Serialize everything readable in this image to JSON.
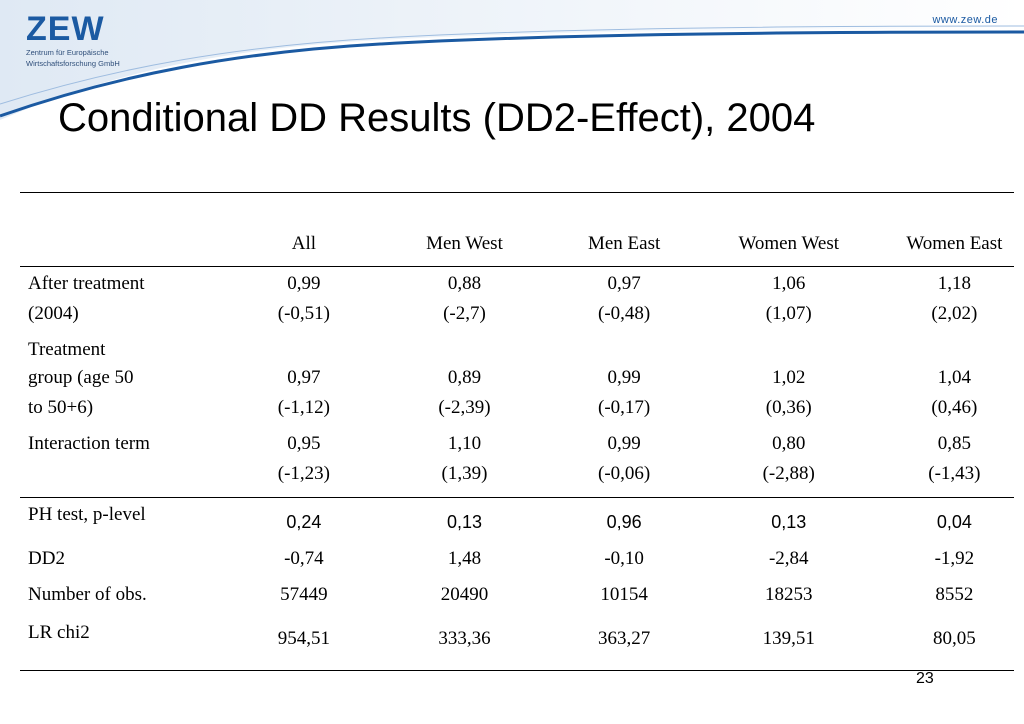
{
  "header": {
    "logo_text": "ZEW",
    "logo_subtitle_1": "Zentrum für Europäische",
    "logo_subtitle_2": "Wirtschaftsforschung GmbH",
    "website": "www.zew.de"
  },
  "slide": {
    "title": "Conditional DD Results (DD2-Effect), 2004",
    "page_number": "23"
  },
  "table": {
    "columns": [
      "All",
      "Men West",
      "Men East",
      "Women West",
      "Women East"
    ],
    "after_treatment": {
      "label_1": "After treatment",
      "label_2": "(2004)",
      "values": [
        "0,99",
        "0,88",
        "0,97",
        "1,06",
        "1,18"
      ],
      "tstats": [
        "(-0,51)",
        "(-2,7)",
        "(-0,48)",
        "(1,07)",
        "(2,02)"
      ]
    },
    "treatment_group": {
      "label_1": "Treatment",
      "label_2": "group (age 50",
      "label_3": "to 50+6)",
      "values": [
        "0,97",
        "0,89",
        "0,99",
        "1,02",
        "1,04"
      ],
      "tstats": [
        "(-1,12)",
        "(-2,39)",
        "(-0,17)",
        "(0,36)",
        "(0,46)"
      ]
    },
    "interaction": {
      "label": "Interaction term",
      "values": [
        "0,95",
        "1,10",
        "0,99",
        "0,80",
        "0,85"
      ],
      "tstats": [
        "(-1,23)",
        "(1,39)",
        "(-0,06)",
        "(-2,88)",
        "(-1,43)"
      ]
    },
    "ph_test": {
      "label": "PH test, p-level",
      "values": [
        "0,24",
        "0,13",
        "0,96",
        "0,13",
        "0,04"
      ]
    },
    "dd2": {
      "label": "DD2",
      "values": [
        "-0,74",
        "1,48",
        "-0,10",
        "-2,84",
        "-1,92"
      ]
    },
    "nobs": {
      "label": "Number of obs.",
      "values": [
        "57449",
        "20490",
        "10154",
        "18253",
        "8552"
      ]
    },
    "lr_chi2": {
      "label": "LR chi2",
      "values": [
        "954,51",
        "333,36",
        "363,27",
        "139,51",
        "80,05"
      ]
    }
  }
}
